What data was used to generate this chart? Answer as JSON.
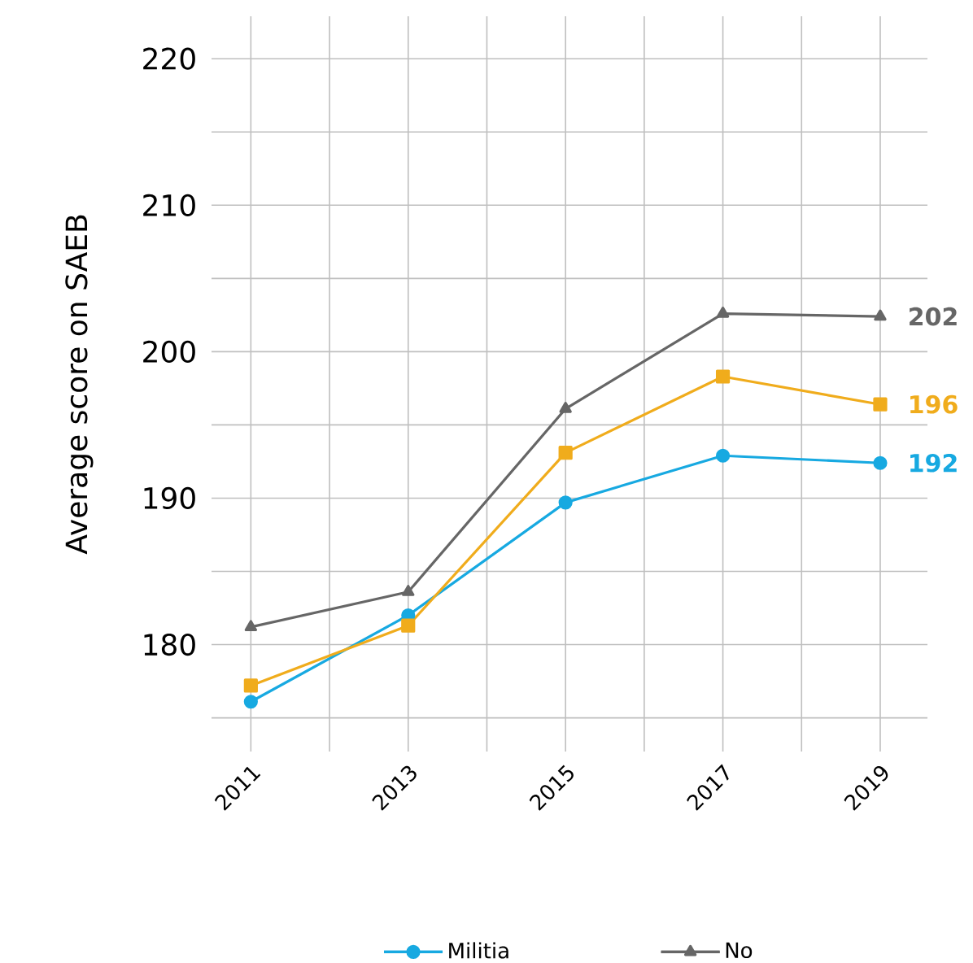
{
  "chart_data": {
    "type": "line",
    "ylabel": "Average score on SAEB",
    "x": [
      2011,
      2013,
      2015,
      2017,
      2019
    ],
    "xlim": [
      2010.5,
      2019.6
    ],
    "ylim": [
      172.7,
      222.9
    ],
    "xticks": [
      2011,
      {
        "value": 2012,
        "label": null
      },
      2013,
      {
        "value": 2014,
        "label": null
      },
      2015,
      {
        "value": 2016,
        "label": null
      },
      2017,
      {
        "value": 2018,
        "label": null
      },
      2019
    ],
    "yticks": [
      {
        "value": 175,
        "label": null
      },
      180,
      {
        "value": 185,
        "label": null
      },
      190,
      {
        "value": 195,
        "label": null
      },
      200,
      {
        "value": 205,
        "label": null
      },
      210,
      {
        "value": 215,
        "label": null
      },
      220
    ],
    "grid": true,
    "legend": "bottom",
    "series": [
      {
        "name": "Militia",
        "color": "#17a9e1",
        "marker": "circle",
        "values": [
          176.1,
          182.0,
          189.7,
          192.9,
          192.4
        ],
        "value_labels": [
          null,
          null,
          null,
          null,
          "192"
        ]
      },
      {
        "color": "#f0ac1c",
        "marker": "square",
        "values": [
          177.2,
          181.3,
          193.1,
          198.3,
          196.4
        ],
        "value_labels": [
          null,
          null,
          null,
          null,
          "196"
        ]
      },
      {
        "name": "No",
        "color": "#666666",
        "marker": "triangle",
        "values": [
          181.2,
          183.6,
          196.1,
          202.6,
          202.4
        ],
        "value_labels": [
          null,
          null,
          null,
          null,
          "202"
        ]
      }
    ]
  }
}
